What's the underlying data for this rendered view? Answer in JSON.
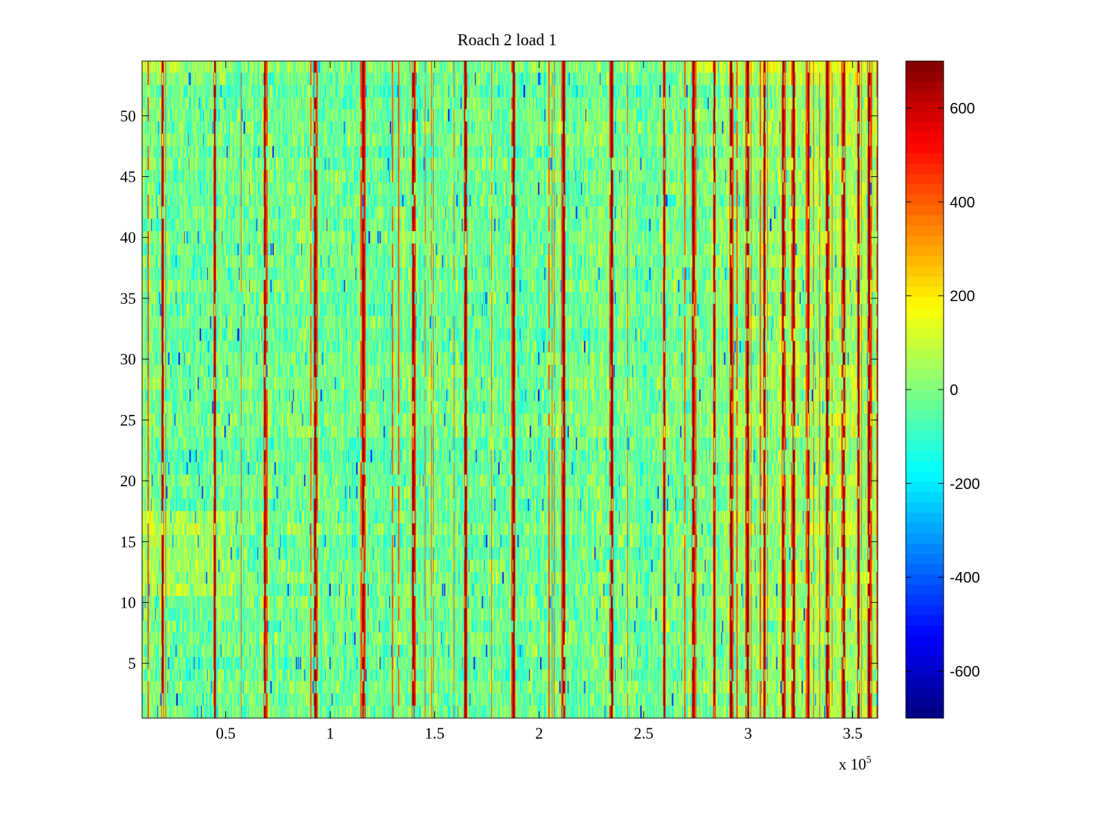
{
  "chart_data": {
    "type": "heatmap",
    "title": "Roach 2 load 1",
    "xlabel": "",
    "ylabel": "",
    "x_exponent_label": "x 10",
    "x_exponent_power": "5",
    "xlim": [
      0.1,
      3.62
    ],
    "ylim": [
      0.5,
      54.5
    ],
    "x_ticks": [
      {
        "value": 0.5,
        "label": "0.5"
      },
      {
        "value": 1,
        "label": "1"
      },
      {
        "value": 1.5,
        "label": "1.5"
      },
      {
        "value": 2,
        "label": "2"
      },
      {
        "value": 2.5,
        "label": "2.5"
      },
      {
        "value": 3,
        "label": "3"
      },
      {
        "value": 3.5,
        "label": "3.5"
      }
    ],
    "y_ticks": [
      {
        "value": 5,
        "label": "5"
      },
      {
        "value": 10,
        "label": "10"
      },
      {
        "value": 15,
        "label": "15"
      },
      {
        "value": 20,
        "label": "20"
      },
      {
        "value": 25,
        "label": "25"
      },
      {
        "value": 30,
        "label": "30"
      },
      {
        "value": 35,
        "label": "35"
      },
      {
        "value": 40,
        "label": "40"
      },
      {
        "value": 45,
        "label": "45"
      },
      {
        "value": 50,
        "label": "50"
      }
    ],
    "rows": 54,
    "columns": 720,
    "colormap": "jet",
    "colorbar": {
      "range": [
        -700,
        700
      ],
      "ticks": [
        {
          "value": 600,
          "label": "600"
        },
        {
          "value": 400,
          "label": "400"
        },
        {
          "value": 200,
          "label": "200"
        },
        {
          "value": 0,
          "label": "0"
        },
        {
          "value": -200,
          "label": "-200"
        },
        {
          "value": -400,
          "label": "-400"
        },
        {
          "value": -600,
          "label": "-600"
        }
      ]
    },
    "value_statistics": {
      "typical_range": [
        -250,
        250
      ],
      "background_mean": -20,
      "warmer_region_x": [
        2.5,
        3.62
      ],
      "peak_value": 700,
      "minimum_value": -650
    },
    "spike_columns_x": [
      0.2,
      0.45,
      0.69,
      0.93,
      1.16,
      1.4,
      1.65,
      1.88,
      2.12,
      2.35,
      2.6,
      2.74,
      2.84,
      2.92,
      3.0,
      3.08,
      3.17,
      3.22,
      3.29,
      3.38,
      3.46,
      3.53,
      3.58
    ]
  }
}
